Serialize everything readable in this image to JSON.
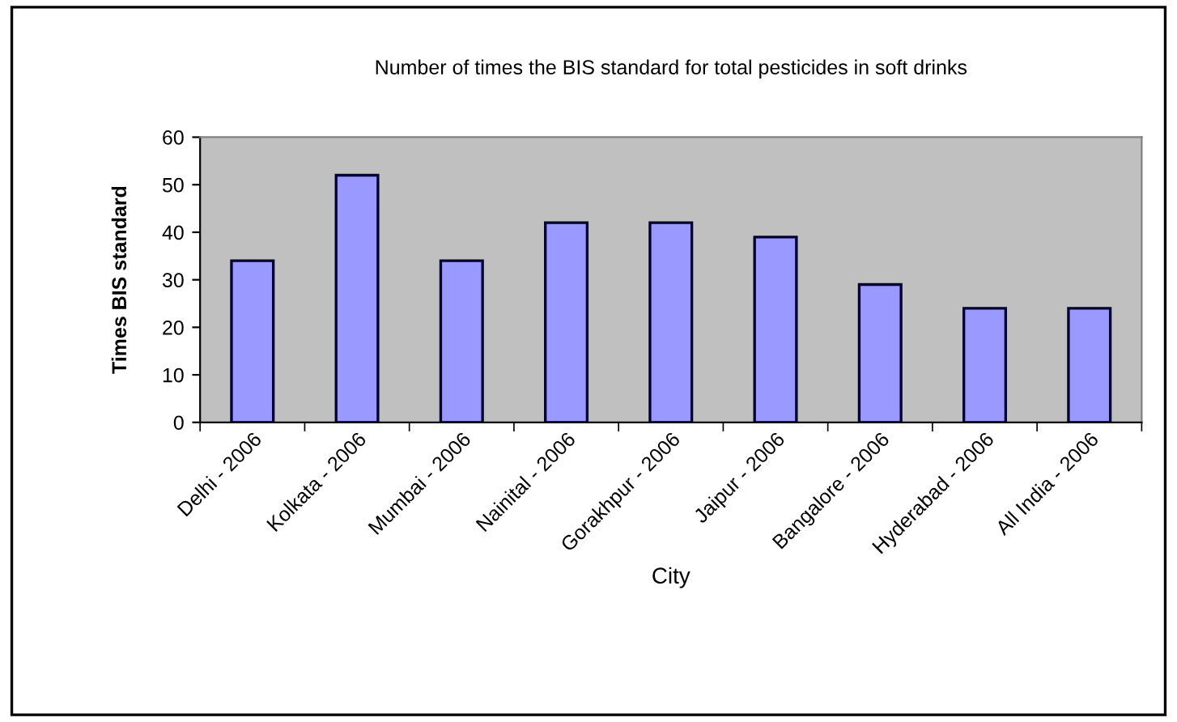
{
  "chart_data": {
    "type": "bar",
    "title": "Number of times the BIS standard for total pesticides in soft drinks",
    "xlabel": "City",
    "ylabel": "Times BIS standard",
    "categories": [
      "Delhi - 2006",
      "Kolkata - 2006",
      "Mumbai - 2006",
      "Nainital - 2006",
      "Gorakhpur - 2006",
      "Jaipur - 2006",
      "Bangalore - 2006",
      "Hyderabad - 2006",
      "All India - 2006"
    ],
    "values": [
      34,
      52,
      34,
      42,
      42,
      39,
      29,
      24,
      24
    ],
    "color": "#9999ff",
    "ylim": [
      0,
      60
    ],
    "yticks": [
      0,
      10,
      20,
      30,
      40,
      50,
      60
    ],
    "grid": false,
    "legend": false
  }
}
